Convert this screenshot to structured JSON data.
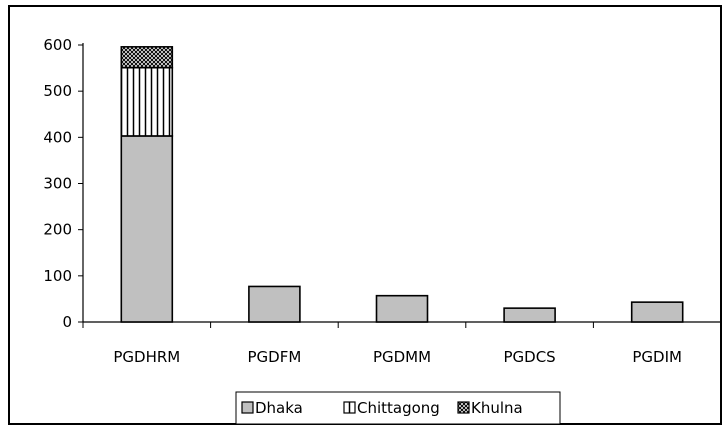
{
  "chart_data": {
    "type": "bar",
    "stacked": true,
    "categories": [
      "PGDHRM",
      "PGDFM",
      "PGDMM",
      "PGDCS",
      "PGDIM"
    ],
    "series": [
      {
        "name": "Dhaka",
        "values": [
          403,
          77,
          57,
          30,
          43
        ],
        "fill": "#c0c0c0",
        "pattern": "solid"
      },
      {
        "name": "Chittagong",
        "values": [
          148,
          0,
          0,
          0,
          0
        ],
        "fill": "#ffffff",
        "pattern": "vertical-stripes"
      },
      {
        "name": "Khulna",
        "values": [
          45,
          0,
          0,
          0,
          0
        ],
        "fill": "#ffffff",
        "pattern": "crosshatch"
      }
    ],
    "ylim": [
      0,
      600
    ],
    "yticks": [
      "0",
      "100",
      "200",
      "300",
      "400",
      "500",
      "600"
    ],
    "title": "",
    "xlabel": "",
    "ylabel": "",
    "grid": false,
    "legend_position": "bottom"
  }
}
